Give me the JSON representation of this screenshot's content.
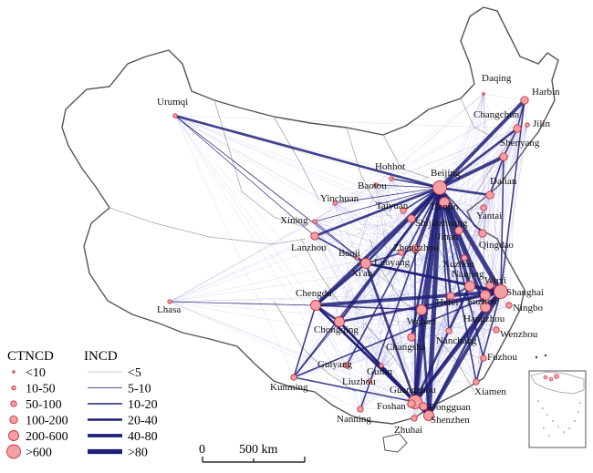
{
  "colors": {
    "boundary": "#a8a8a8",
    "boundary_fill": "#ffffff",
    "link": "#1e1e78",
    "node_fill": "#f2a0a6",
    "node_stroke": "#c8323c"
  },
  "cities": [
    {
      "name": "Urumqi",
      "size": 1
    },
    {
      "name": "Daqing",
      "size": 0
    },
    {
      "name": "Harbin",
      "size": 3
    },
    {
      "name": "Changchun",
      "size": 3
    },
    {
      "name": "Jilin",
      "size": 1
    },
    {
      "name": "Shenyang",
      "size": 3
    },
    {
      "name": "Hohhot",
      "size": 1
    },
    {
      "name": "Beijing",
      "size": 5
    },
    {
      "name": "Baotou",
      "size": 1
    },
    {
      "name": "Dalian",
      "size": 3
    },
    {
      "name": "Yinchuan",
      "size": 1
    },
    {
      "name": "Tianjin",
      "size": 4
    },
    {
      "name": "Taiyuan",
      "size": 2
    },
    {
      "name": "Yantai",
      "size": 2
    },
    {
      "name": "Xining",
      "size": 1
    },
    {
      "name": "Shijiazhuang",
      "size": 3
    },
    {
      "name": "Jinan",
      "size": 3
    },
    {
      "name": "Lanzhou",
      "size": 3
    },
    {
      "name": "Qingdao",
      "size": 3
    },
    {
      "name": "Baoji",
      "size": 1
    },
    {
      "name": "Zhengzhou",
      "size": 3
    },
    {
      "name": "Xi'an",
      "size": 4
    },
    {
      "name": "Luoyang",
      "size": 2
    },
    {
      "name": "Xuzhou",
      "size": 2
    },
    {
      "name": "Nanjing",
      "size": 4
    },
    {
      "name": "Wuxi",
      "size": 3
    },
    {
      "name": "Shanghai",
      "size": 5
    },
    {
      "name": "Chengdu",
      "size": 4
    },
    {
      "name": "Hefei",
      "size": 3
    },
    {
      "name": "Suzhou",
      "size": 4
    },
    {
      "name": "Ningbo",
      "size": 2
    },
    {
      "name": "Lhasa",
      "size": 1
    },
    {
      "name": "Wuhan",
      "size": 4
    },
    {
      "name": "Hangzhou",
      "size": 4
    },
    {
      "name": "Chongqing",
      "size": 4
    },
    {
      "name": "Wenzhou",
      "size": 2
    },
    {
      "name": "Nanchang",
      "size": 2
    },
    {
      "name": "Changsha",
      "size": 3
    },
    {
      "name": "Fuzhou",
      "size": 2
    },
    {
      "name": "Guiyang",
      "size": 2
    },
    {
      "name": "Guilin",
      "size": 1
    },
    {
      "name": "Liuzhou",
      "size": 1
    },
    {
      "name": "Kunming",
      "size": 2
    },
    {
      "name": "Xiamen",
      "size": 2
    },
    {
      "name": "Guangzhou",
      "size": 5
    },
    {
      "name": "Dongguan",
      "size": 3
    },
    {
      "name": "Foshan",
      "size": 3
    },
    {
      "name": "Shenzhen",
      "size": 4
    },
    {
      "name": "Nanning",
      "size": 2
    },
    {
      "name": "Zhuhai",
      "size": 2
    }
  ],
  "legend_nodes": {
    "title": "CTNCD",
    "items": [
      "<10",
      "10-50",
      "50-100",
      "100-200",
      "200-600",
      ">600"
    ]
  },
  "legend_links": {
    "title": "INCD",
    "items": [
      "<5",
      "5-10",
      "10-20",
      "20-40",
      "40-80",
      ">80"
    ]
  },
  "scale_bar": {
    "start": "0",
    "end": "500 km"
  }
}
